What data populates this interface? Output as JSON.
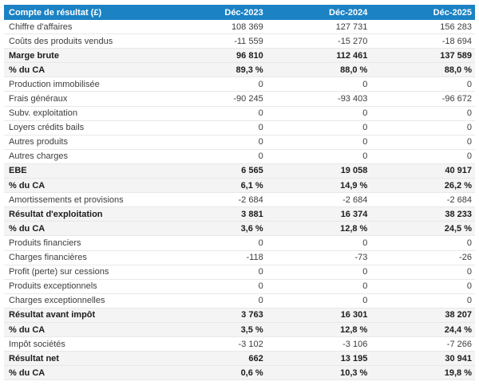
{
  "colors": {
    "header_bg": "#1b82c4",
    "header_text": "#ffffff",
    "stripe_bg": "#f4f4f4",
    "row_border": "#e8e8e8",
    "text": "#3d3d3d",
    "text_strong": "#1c1c1c"
  },
  "table": {
    "title": "Compte de résultat (£)",
    "columns": [
      "Déc-2023",
      "Déc-2024",
      "Déc-2025"
    ],
    "rows": [
      {
        "label": "Chiffre d'affaires",
        "values": [
          "108 369",
          "127 731",
          "156 283"
        ],
        "emphasis": false
      },
      {
        "label": "Coûts des produits vendus",
        "values": [
          "-11 559",
          "-15 270",
          "-18 694"
        ],
        "emphasis": false
      },
      {
        "label": "Marge brute",
        "values": [
          "96 810",
          "112 461",
          "137 589"
        ],
        "emphasis": true
      },
      {
        "label": "% du CA",
        "values": [
          "89,3 %",
          "88,0 %",
          "88,0 %"
        ],
        "emphasis": true
      },
      {
        "label": "Production immobilisée",
        "values": [
          "0",
          "0",
          "0"
        ],
        "emphasis": false
      },
      {
        "label": "Frais généraux",
        "values": [
          "-90 245",
          "-93 403",
          "-96 672"
        ],
        "emphasis": false
      },
      {
        "label": "Subv. exploitation",
        "values": [
          "0",
          "0",
          "0"
        ],
        "emphasis": false
      },
      {
        "label": "Loyers crédits bails",
        "values": [
          "0",
          "0",
          "0"
        ],
        "emphasis": false
      },
      {
        "label": "Autres produits",
        "values": [
          "0",
          "0",
          "0"
        ],
        "emphasis": false
      },
      {
        "label": "Autres charges",
        "values": [
          "0",
          "0",
          "0"
        ],
        "emphasis": false
      },
      {
        "label": "EBE",
        "values": [
          "6 565",
          "19 058",
          "40 917"
        ],
        "emphasis": true
      },
      {
        "label": "% du CA",
        "values": [
          "6,1 %",
          "14,9 %",
          "26,2 %"
        ],
        "emphasis": true
      },
      {
        "label": "Amortissements et provisions",
        "values": [
          "-2 684",
          "-2 684",
          "-2 684"
        ],
        "emphasis": false
      },
      {
        "label": "Résultat d'exploitation",
        "values": [
          "3 881",
          "16 374",
          "38 233"
        ],
        "emphasis": true
      },
      {
        "label": "% du CA",
        "values": [
          "3,6 %",
          "12,8 %",
          "24,5 %"
        ],
        "emphasis": true
      },
      {
        "label": "Produits financiers",
        "values": [
          "0",
          "0",
          "0"
        ],
        "emphasis": false
      },
      {
        "label": "Charges financières",
        "values": [
          "-118",
          "-73",
          "-26"
        ],
        "emphasis": false
      },
      {
        "label": "Profit (perte) sur cessions",
        "values": [
          "0",
          "0",
          "0"
        ],
        "emphasis": false
      },
      {
        "label": "Produits exceptionnels",
        "values": [
          "0",
          "0",
          "0"
        ],
        "emphasis": false
      },
      {
        "label": "Charges exceptionnelles",
        "values": [
          "0",
          "0",
          "0"
        ],
        "emphasis": false
      },
      {
        "label": "Résultat avant impôt",
        "values": [
          "3 763",
          "16 301",
          "38 207"
        ],
        "emphasis": true
      },
      {
        "label": "% du CA",
        "values": [
          "3,5 %",
          "12,8 %",
          "24,4 %"
        ],
        "emphasis": true
      },
      {
        "label": "Impôt sociétés",
        "values": [
          "-3 102",
          "-3 106",
          "-7 266"
        ],
        "emphasis": false
      },
      {
        "label": "Résultat net",
        "values": [
          "662",
          "13 195",
          "30 941"
        ],
        "emphasis": true
      },
      {
        "label": "% du CA",
        "values": [
          "0,6 %",
          "10,3 %",
          "19,8 %"
        ],
        "emphasis": true
      }
    ]
  },
  "chart_data": {
    "type": "table",
    "title": "Compte de résultat (£)",
    "columns": [
      "Compte de résultat (£)",
      "Déc-2023",
      "Déc-2024",
      "Déc-2025"
    ],
    "rows": [
      {
        "label": "Chiffre d'affaires",
        "values": [
          108369,
          127731,
          156283
        ]
      },
      {
        "label": "Coûts des produits vendus",
        "values": [
          -11559,
          -15270,
          -18694
        ]
      },
      {
        "label": "Marge brute",
        "values": [
          96810,
          112461,
          137589
        ]
      },
      {
        "label": "% du CA",
        "percent": true,
        "values": [
          89.3,
          88.0,
          88.0
        ]
      },
      {
        "label": "Production immobilisée",
        "values": [
          0,
          0,
          0
        ]
      },
      {
        "label": "Frais généraux",
        "values": [
          -90245,
          -93403,
          -96672
        ]
      },
      {
        "label": "Subv. exploitation",
        "values": [
          0,
          0,
          0
        ]
      },
      {
        "label": "Loyers crédits bails",
        "values": [
          0,
          0,
          0
        ]
      },
      {
        "label": "Autres produits",
        "values": [
          0,
          0,
          0
        ]
      },
      {
        "label": "Autres charges",
        "values": [
          0,
          0,
          0
        ]
      },
      {
        "label": "EBE",
        "values": [
          6565,
          19058,
          40917
        ]
      },
      {
        "label": "% du CA",
        "percent": true,
        "values": [
          6.1,
          14.9,
          26.2
        ]
      },
      {
        "label": "Amortissements et provisions",
        "values": [
          -2684,
          -2684,
          -2684
        ]
      },
      {
        "label": "Résultat d'exploitation",
        "values": [
          3881,
          16374,
          38233
        ]
      },
      {
        "label": "% du CA",
        "percent": true,
        "values": [
          3.6,
          12.8,
          24.5
        ]
      },
      {
        "label": "Produits financiers",
        "values": [
          0,
          0,
          0
        ]
      },
      {
        "label": "Charges financières",
        "values": [
          -118,
          -73,
          -26
        ]
      },
      {
        "label": "Profit (perte) sur cessions",
        "values": [
          0,
          0,
          0
        ]
      },
      {
        "label": "Produits exceptionnels",
        "values": [
          0,
          0,
          0
        ]
      },
      {
        "label": "Charges exceptionnelles",
        "values": [
          0,
          0,
          0
        ]
      },
      {
        "label": "Résultat avant impôt",
        "values": [
          3763,
          16301,
          38207
        ]
      },
      {
        "label": "% du CA",
        "percent": true,
        "values": [
          3.5,
          12.8,
          24.4
        ]
      },
      {
        "label": "Impôt sociétés",
        "values": [
          -3102,
          -3106,
          -7266
        ]
      },
      {
        "label": "Résultat net",
        "values": [
          662,
          13195,
          30941
        ]
      },
      {
        "label": "% du CA",
        "percent": true,
        "values": [
          0.6,
          10.3,
          19.8
        ]
      }
    ]
  }
}
